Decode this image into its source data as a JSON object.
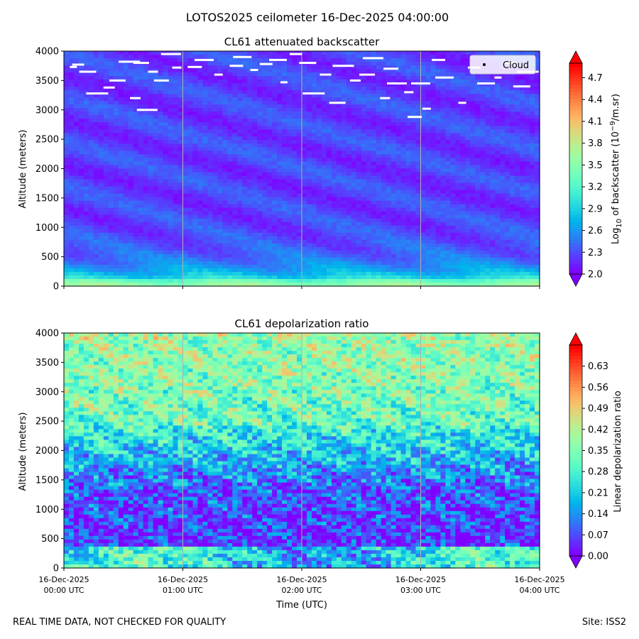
{
  "figure": {
    "title": "LOTOS2025 ceilometer 16-Dec-2025 04:00:00",
    "footer_left": "REAL TIME DATA, NOT CHECKED FOR QUALITY",
    "footer_right": "Site: ISS2"
  },
  "chart_data": [
    {
      "type": "heatmap",
      "title": "CL61 attenuated backscatter",
      "ylabel": "Altitude (meters)",
      "xlabel": "",
      "y_ticks": [
        0,
        500,
        1000,
        1500,
        2000,
        2500,
        3000,
        3500,
        4000
      ],
      "ylim": [
        0,
        4000
      ],
      "xlim_hours": [
        0,
        4
      ],
      "legend": {
        "entries": [
          "Cloud"
        ],
        "placement": "top-right"
      },
      "colorbar": {
        "label_prefix": "Log",
        "label_sub": "10",
        "label_mid": " of backscatter (10",
        "label_sup": "−9",
        "label_end": "/m.sr)",
        "min": 2.0,
        "max": 4.9,
        "ticks": [
          "2.0",
          "2.3",
          "2.6",
          "2.9",
          "3.2",
          "3.5",
          "3.8",
          "4.1",
          "4.4",
          "4.7"
        ],
        "tick_values": [
          2.0,
          2.3,
          2.6,
          2.9,
          3.2,
          3.5,
          3.8,
          4.1,
          4.4,
          4.7
        ]
      },
      "cloud_points": [
        [
          0.08,
          3730
        ],
        [
          0.12,
          3770
        ],
        [
          0.2,
          3650
        ],
        [
          0.28,
          3280
        ],
        [
          0.38,
          3380
        ],
        [
          0.45,
          3500
        ],
        [
          0.55,
          3820
        ],
        [
          0.6,
          3200
        ],
        [
          0.65,
          3800
        ],
        [
          0.7,
          3000
        ],
        [
          0.75,
          3650
        ],
        [
          0.82,
          3500
        ],
        [
          0.9,
          3950
        ],
        [
          0.95,
          3720
        ],
        [
          1.1,
          3730
        ],
        [
          1.18,
          3850
        ],
        [
          1.3,
          3600
        ],
        [
          1.45,
          3750
        ],
        [
          1.5,
          3900
        ],
        [
          1.6,
          3680
        ],
        [
          1.7,
          3780
        ],
        [
          1.8,
          3850
        ],
        [
          1.85,
          3470
        ],
        [
          1.95,
          3950
        ],
        [
          2.05,
          3800
        ],
        [
          2.1,
          3280
        ],
        [
          2.2,
          3600
        ],
        [
          2.3,
          3120
        ],
        [
          2.35,
          3750
        ],
        [
          2.45,
          3500
        ],
        [
          2.55,
          3600
        ],
        [
          2.6,
          3880
        ],
        [
          2.7,
          3200
        ],
        [
          2.75,
          3700
        ],
        [
          2.8,
          3450
        ],
        [
          2.9,
          3300
        ],
        [
          2.95,
          2880
        ],
        [
          3.0,
          3450
        ],
        [
          3.05,
          3020
        ],
        [
          3.15,
          3850
        ],
        [
          3.2,
          3550
        ],
        [
          3.35,
          3120
        ],
        [
          3.45,
          3720
        ],
        [
          3.55,
          3450
        ],
        [
          3.65,
          3550
        ],
        [
          3.75,
          3800
        ],
        [
          3.85,
          3400
        ],
        [
          3.9,
          3650
        ]
      ]
    },
    {
      "type": "heatmap",
      "title": "CL61 depolarization ratio",
      "ylabel": "Altitude (meters)",
      "xlabel": "Time (UTC)",
      "y_ticks": [
        0,
        500,
        1000,
        1500,
        2000,
        2500,
        3000,
        3500,
        4000
      ],
      "ylim": [
        0,
        4000
      ],
      "xlim_hours": [
        0,
        4
      ],
      "x_ticks": [
        {
          "hour": 0,
          "line1": "16-Dec-2025",
          "line2": "00:00 UTC"
        },
        {
          "hour": 1,
          "line1": "16-Dec-2025",
          "line2": "01:00 UTC"
        },
        {
          "hour": 2,
          "line1": "16-Dec-2025",
          "line2": "02:00 UTC"
        },
        {
          "hour": 3,
          "line1": "16-Dec-2025",
          "line2": "03:00 UTC"
        },
        {
          "hour": 4,
          "line1": "16-Dec-2025",
          "line2": "04:00 UTC"
        }
      ],
      "colorbar": {
        "label": "Linear depolarization ratio",
        "min": 0.0,
        "max": 0.7,
        "ticks": [
          "0.00",
          "0.07",
          "0.14",
          "0.21",
          "0.28",
          "0.35",
          "0.42",
          "0.49",
          "0.56",
          "0.63"
        ],
        "tick_values": [
          0.0,
          0.07,
          0.14,
          0.21,
          0.28,
          0.35,
          0.42,
          0.49,
          0.56,
          0.63
        ]
      }
    }
  ],
  "colors": {
    "grid": "#b0b0b0",
    "cloud": "#ffffff",
    "legend_bg": "#ffffff"
  }
}
